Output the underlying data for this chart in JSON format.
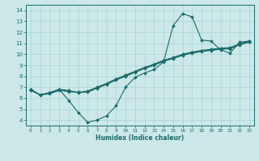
{
  "title": "",
  "xlabel": "Humidex (Indice chaleur)",
  "xlim": [
    -0.5,
    23.5
  ],
  "ylim": [
    3.5,
    14.5
  ],
  "yticks": [
    4,
    5,
    6,
    7,
    8,
    9,
    10,
    11,
    12,
    13,
    14
  ],
  "xticks": [
    0,
    1,
    2,
    3,
    4,
    5,
    6,
    7,
    8,
    9,
    10,
    11,
    12,
    13,
    14,
    15,
    16,
    17,
    18,
    19,
    20,
    21,
    22,
    23
  ],
  "bg_color": "#cce8e8",
  "grid_color": "#aad4d4",
  "line_color": "#1a6b6b",
  "line1": [
    6.8,
    6.3,
    6.5,
    6.8,
    5.8,
    4.7,
    3.8,
    4.0,
    4.4,
    5.3,
    7.0,
    7.9,
    8.3,
    8.6,
    9.3,
    12.6,
    13.7,
    13.4,
    11.3,
    11.2,
    10.4,
    10.1,
    11.1,
    11.2
  ],
  "line2": [
    6.7,
    6.3,
    6.4,
    6.7,
    6.6,
    6.55,
    6.6,
    6.95,
    7.3,
    7.7,
    8.05,
    8.4,
    8.75,
    9.05,
    9.4,
    9.65,
    9.95,
    10.15,
    10.3,
    10.4,
    10.5,
    10.55,
    10.9,
    11.15
  ],
  "line3": [
    6.75,
    6.3,
    6.45,
    6.75,
    6.65,
    6.5,
    6.55,
    6.9,
    7.25,
    7.65,
    8.0,
    8.35,
    8.7,
    9.0,
    9.35,
    9.6,
    9.9,
    10.1,
    10.25,
    10.35,
    10.45,
    10.5,
    10.85,
    11.1
  ],
  "line4": [
    6.8,
    6.3,
    6.5,
    6.8,
    6.7,
    6.5,
    6.65,
    7.0,
    7.35,
    7.75,
    8.1,
    8.45,
    8.8,
    9.1,
    9.45,
    9.7,
    10.0,
    10.2,
    10.35,
    10.45,
    10.55,
    10.6,
    10.95,
    11.2
  ]
}
